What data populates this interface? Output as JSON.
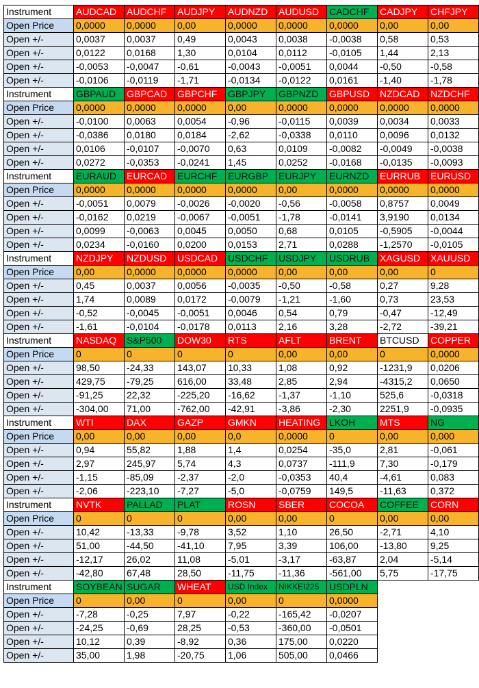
{
  "labels": {
    "instrument": "Instrument",
    "open_price": "Open Price",
    "open_diff": "Open +/-"
  },
  "colors": {
    "red": "#ff0000",
    "green": "#00b050",
    "white": "#ffffff",
    "price_row": "#f7b32b",
    "label_open_price": "#c5d9f1",
    "label_open_diff": "#dce6f1"
  },
  "blocks": [
    {
      "instruments": [
        {
          "name": "AUDCAD",
          "color": "red"
        },
        {
          "name": "AUDCHF",
          "color": "red"
        },
        {
          "name": "AUDJPY",
          "color": "red"
        },
        {
          "name": "AUDNZD",
          "color": "red"
        },
        {
          "name": "AUDUSD",
          "color": "red"
        },
        {
          "name": "CADCHF",
          "color": "green"
        },
        {
          "name": "CADJPY",
          "color": "red"
        },
        {
          "name": "CHFJPY",
          "color": "red"
        }
      ],
      "open_price": [
        "0,0000",
        "0,0000",
        "0,00",
        "0,0000",
        "0,0000",
        "0,0000",
        "0,00",
        "0,00"
      ],
      "rows": [
        [
          "0,0037",
          "0,0037",
          "0,49",
          "0,0043",
          "0,0038",
          "-0,0038",
          "0,58",
          "0,53"
        ],
        [
          "0,0122",
          "0,0168",
          "1,30",
          "0,0104",
          "0,0112",
          "-0,0105",
          "1,44",
          "2,13"
        ],
        [
          "-0,0053",
          "-0,0047",
          "-0,61",
          "-0,0043",
          "-0,0051",
          "0,0044",
          "-0,50",
          "-0,58"
        ],
        [
          "-0,0106",
          "-0,0119",
          "-1,71",
          "-0,0134",
          "-0,0122",
          "0,0161",
          "-1,40",
          "-1,78"
        ]
      ]
    },
    {
      "instruments": [
        {
          "name": "GBPAUD",
          "color": "green"
        },
        {
          "name": "GBPCAD",
          "color": "red"
        },
        {
          "name": "GBPCHF",
          "color": "red"
        },
        {
          "name": "GBPJPY",
          "color": "green"
        },
        {
          "name": "GBPNZD",
          "color": "green"
        },
        {
          "name": "GBPUSD",
          "color": "red"
        },
        {
          "name": "NZDCAD",
          "color": "red"
        },
        {
          "name": "NZDCHF",
          "color": "red"
        }
      ],
      "open_price": [
        "0,0000",
        "0,0000",
        "0,0000",
        "0,00",
        "0,0000",
        "0,0000",
        "0,0000",
        "0,0000"
      ],
      "rows": [
        [
          "-0,0100",
          "0,0063",
          "0,0054",
          "-0,96",
          "-0,0115",
          "0,0039",
          "0,0034",
          "0,0033"
        ],
        [
          "-0,0386",
          "0,0180",
          "0,0184",
          "-2,62",
          "-0,0338",
          "0,0110",
          "0,0096",
          "0,0132"
        ],
        [
          "0,0106",
          "-0,0107",
          "-0,0070",
          "0,63",
          "0,0109",
          "-0,0082",
          "-0,0049",
          "-0,0038"
        ],
        [
          "0,0272",
          "-0,0353",
          "-0,0241",
          "1,45",
          "0,0252",
          "-0,0168",
          "-0,0135",
          "-0,0093"
        ]
      ]
    },
    {
      "instruments": [
        {
          "name": "EURAUD",
          "color": "green"
        },
        {
          "name": "EURCAD",
          "color": "red"
        },
        {
          "name": "EURCHF",
          "color": "green"
        },
        {
          "name": "EURGBP",
          "color": "green"
        },
        {
          "name": "EURJPY",
          "color": "green"
        },
        {
          "name": "EURNZD",
          "color": "green"
        },
        {
          "name": "EURRUB",
          "color": "red"
        },
        {
          "name": "EURUSD",
          "color": "red"
        }
      ],
      "open_price": [
        "0,0000",
        "0,0000",
        "0,0000",
        "0,0000",
        "0,00",
        "0,0000",
        "0,0000",
        "0,0000"
      ],
      "rows": [
        [
          "-0,0051",
          "0,0079",
          "-0,0026",
          "-0,0020",
          "-0,56",
          "-0,0058",
          "0,8757",
          "0,0049"
        ],
        [
          "-0,0162",
          "0,0219",
          "-0,0067",
          "-0,0051",
          "-1,78",
          "-0,0141",
          "3,9190",
          "0,0134"
        ],
        [
          "0,0099",
          "-0,0063",
          "0,0045",
          "0,0050",
          "0,68",
          "0,0105",
          "-0,5905",
          "-0,0044"
        ],
        [
          "0,0234",
          "-0,0160",
          "0,0200",
          "0,0153",
          "2,71",
          "0,0288",
          "-1,2570",
          "-0,0105"
        ]
      ]
    },
    {
      "instruments": [
        {
          "name": "NZDJPY",
          "color": "red"
        },
        {
          "name": "NZDUSD",
          "color": "red"
        },
        {
          "name": "USDCAD",
          "color": "red"
        },
        {
          "name": "USDCHF",
          "color": "green"
        },
        {
          "name": "USDJPY",
          "color": "green"
        },
        {
          "name": "USDRUB",
          "color": "green"
        },
        {
          "name": "XAGUSD",
          "color": "red"
        },
        {
          "name": "XAUUSD",
          "color": "red"
        }
      ],
      "open_price": [
        "0,00",
        "0,0000",
        "0,0000",
        "0,0000",
        "0,00",
        "0,00",
        "0,00",
        "0"
      ],
      "rows": [
        [
          "0,45",
          "0,0037",
          "0,0056",
          "-0,0035",
          "-0,50",
          "-0,58",
          "0,27",
          "9,28"
        ],
        [
          "1,74",
          "0,0089",
          "0,0172",
          "-0,0079",
          "-1,21",
          "-1,60",
          "0,73",
          "23,53"
        ],
        [
          "-0,52",
          "-0,0045",
          "-0,0051",
          "0,0046",
          "0,54",
          "0,79",
          "-0,47",
          "-12,49"
        ],
        [
          "-1,61",
          "-0,0104",
          "-0,0178",
          "0,0113",
          "2,16",
          "3,28",
          "-2,72",
          "-39,21"
        ]
      ]
    },
    {
      "instruments": [
        {
          "name": "NASDAQ",
          "color": "red"
        },
        {
          "name": "S&P500",
          "color": "green"
        },
        {
          "name": "DOW30",
          "color": "red"
        },
        {
          "name": "RTS",
          "color": "red"
        },
        {
          "name": "AFLT",
          "color": "red"
        },
        {
          "name": "BRENT",
          "color": "red"
        },
        {
          "name": "BTCUSD",
          "color": "white"
        },
        {
          "name": "COPPER",
          "color": "red"
        }
      ],
      "open_price": [
        "0",
        "0",
        "0",
        "0",
        "0,00",
        "0,00",
        "0",
        "0,0000"
      ],
      "rows": [
        [
          "98,50",
          "-24,33",
          "143,07",
          "10,33",
          "1,08",
          "0,92",
          "-1231,9",
          "0,0206"
        ],
        [
          "429,75",
          "-79,25",
          "616,00",
          "33,48",
          "2,85",
          "2,94",
          "-4315,2",
          "0,0650"
        ],
        [
          "-91,25",
          "22,32",
          "-225,20",
          "-16,62",
          "-1,37",
          "-1,10",
          "525,6",
          "-0,0318"
        ],
        [
          "-304,00",
          "71,00",
          "-762,00",
          "-42,91",
          "-3,86",
          "-2,30",
          "2251,9",
          "-0,0935"
        ]
      ]
    },
    {
      "instruments": [
        {
          "name": "WTI",
          "color": "red"
        },
        {
          "name": "DAX",
          "color": "red"
        },
        {
          "name": "GAZP",
          "color": "red"
        },
        {
          "name": "GMKN",
          "color": "red"
        },
        {
          "name": "HEATING",
          "color": "red"
        },
        {
          "name": "LKOH",
          "color": "green"
        },
        {
          "name": "MTS",
          "color": "red"
        },
        {
          "name": "NG",
          "color": "green"
        }
      ],
      "open_price": [
        "0,00",
        "0,00",
        "0,00",
        "0,0",
        "0,0000",
        "0",
        "0,00",
        "0,000"
      ],
      "rows": [
        [
          "0,94",
          "55,82",
          "1,88",
          "1,4",
          "0,0254",
          "-35,0",
          "2,81",
          "-0,061"
        ],
        [
          "2,97",
          "245,97",
          "5,74",
          "4,3",
          "0,0737",
          "-111,9",
          "7,30",
          "-0,179"
        ],
        [
          "-1,15",
          "-85,09",
          "-2,37",
          "-2,0",
          "-0,0353",
          "40,4",
          "-4,61",
          "0,083"
        ],
        [
          "-2,06",
          "-223,10",
          "-7,27",
          "-5,0",
          "-0,0759",
          "149,5",
          "-11,63",
          "0,372"
        ]
      ]
    },
    {
      "instruments": [
        {
          "name": "NVTK",
          "color": "red"
        },
        {
          "name": "PALLAD",
          "color": "green"
        },
        {
          "name": "PLAT",
          "color": "green"
        },
        {
          "name": "ROSN",
          "color": "red"
        },
        {
          "name": "SBER",
          "color": "red"
        },
        {
          "name": "COCOA",
          "color": "red"
        },
        {
          "name": "COFFEE",
          "color": "green"
        },
        {
          "name": "CORN",
          "color": "red"
        }
      ],
      "open_price": [
        "0",
        "0",
        "0",
        "0,00",
        "0,00",
        "0",
        "0,00",
        "0,00"
      ],
      "rows": [
        [
          "10,42",
          "-13,33",
          "-9,78",
          "3,52",
          "1,10",
          "26,50",
          "-2,71",
          "4,10"
        ],
        [
          "51,00",
          "-44,50",
          "-41,10",
          "7,95",
          "3,39",
          "106,00",
          "-13,80",
          "9,25"
        ],
        [
          "-12,17",
          "26,02",
          "11,08",
          "-5,01",
          "-3,17",
          "-63,87",
          "2,04",
          "-5,14"
        ],
        [
          "-42,80",
          "67,48",
          "28,50",
          "-11,75",
          "-11,36",
          "-561,00",
          "5,75",
          "-17,75"
        ]
      ]
    },
    {
      "instruments": [
        {
          "name": "SOYBEAN",
          "color": "green"
        },
        {
          "name": "SUGAR",
          "color": "green"
        },
        {
          "name": "WHEAT",
          "color": "red"
        },
        {
          "name": "USD Index",
          "color": "green"
        },
        {
          "name": "NIKKEI225",
          "color": "green"
        },
        {
          "name": "USDPLN",
          "color": "green"
        }
      ],
      "open_price": [
        "0",
        "0,00",
        "0",
        "0,00",
        "0",
        "0,0000"
      ],
      "rows": [
        [
          "-7,28",
          "-0,25",
          "7,97",
          "-0,22",
          "-165,42",
          "-0,0207"
        ],
        [
          "-24,25",
          "-0,69",
          "28,25",
          "-0,53",
          "-360,00",
          "-0,0501"
        ],
        [
          "10,12",
          "0,39",
          "-8,92",
          "0,36",
          "175,00",
          "0,0220"
        ],
        [
          "35,00",
          "1,98",
          "-20,75",
          "1,06",
          "505,00",
          "0,0466"
        ]
      ]
    }
  ]
}
